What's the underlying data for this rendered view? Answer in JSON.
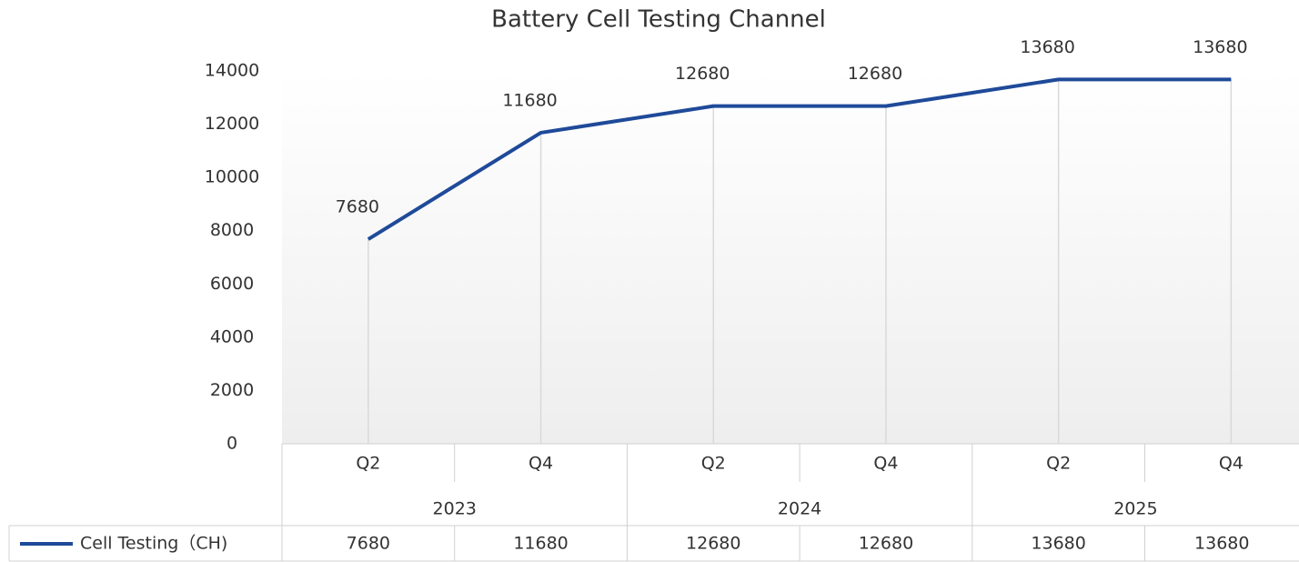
{
  "chart_data": {
    "type": "line",
    "title": "Battery Cell Testing Channel",
    "categories": [
      "Q2",
      "Q4",
      "Q2",
      "Q4",
      "Q2",
      "Q4"
    ],
    "groups": [
      "2023",
      "2024",
      "2025"
    ],
    "series": [
      {
        "name": "Cell Testing（CH)",
        "color": "#1f4a99",
        "values": [
          7680,
          11680,
          12680,
          12680,
          13680,
          13680
        ]
      }
    ],
    "ylim": [
      0,
      14000
    ],
    "yticks": [
      0,
      2000,
      4000,
      6000,
      8000,
      10000,
      12000,
      14000
    ],
    "data_labels": true,
    "data_table": true
  }
}
